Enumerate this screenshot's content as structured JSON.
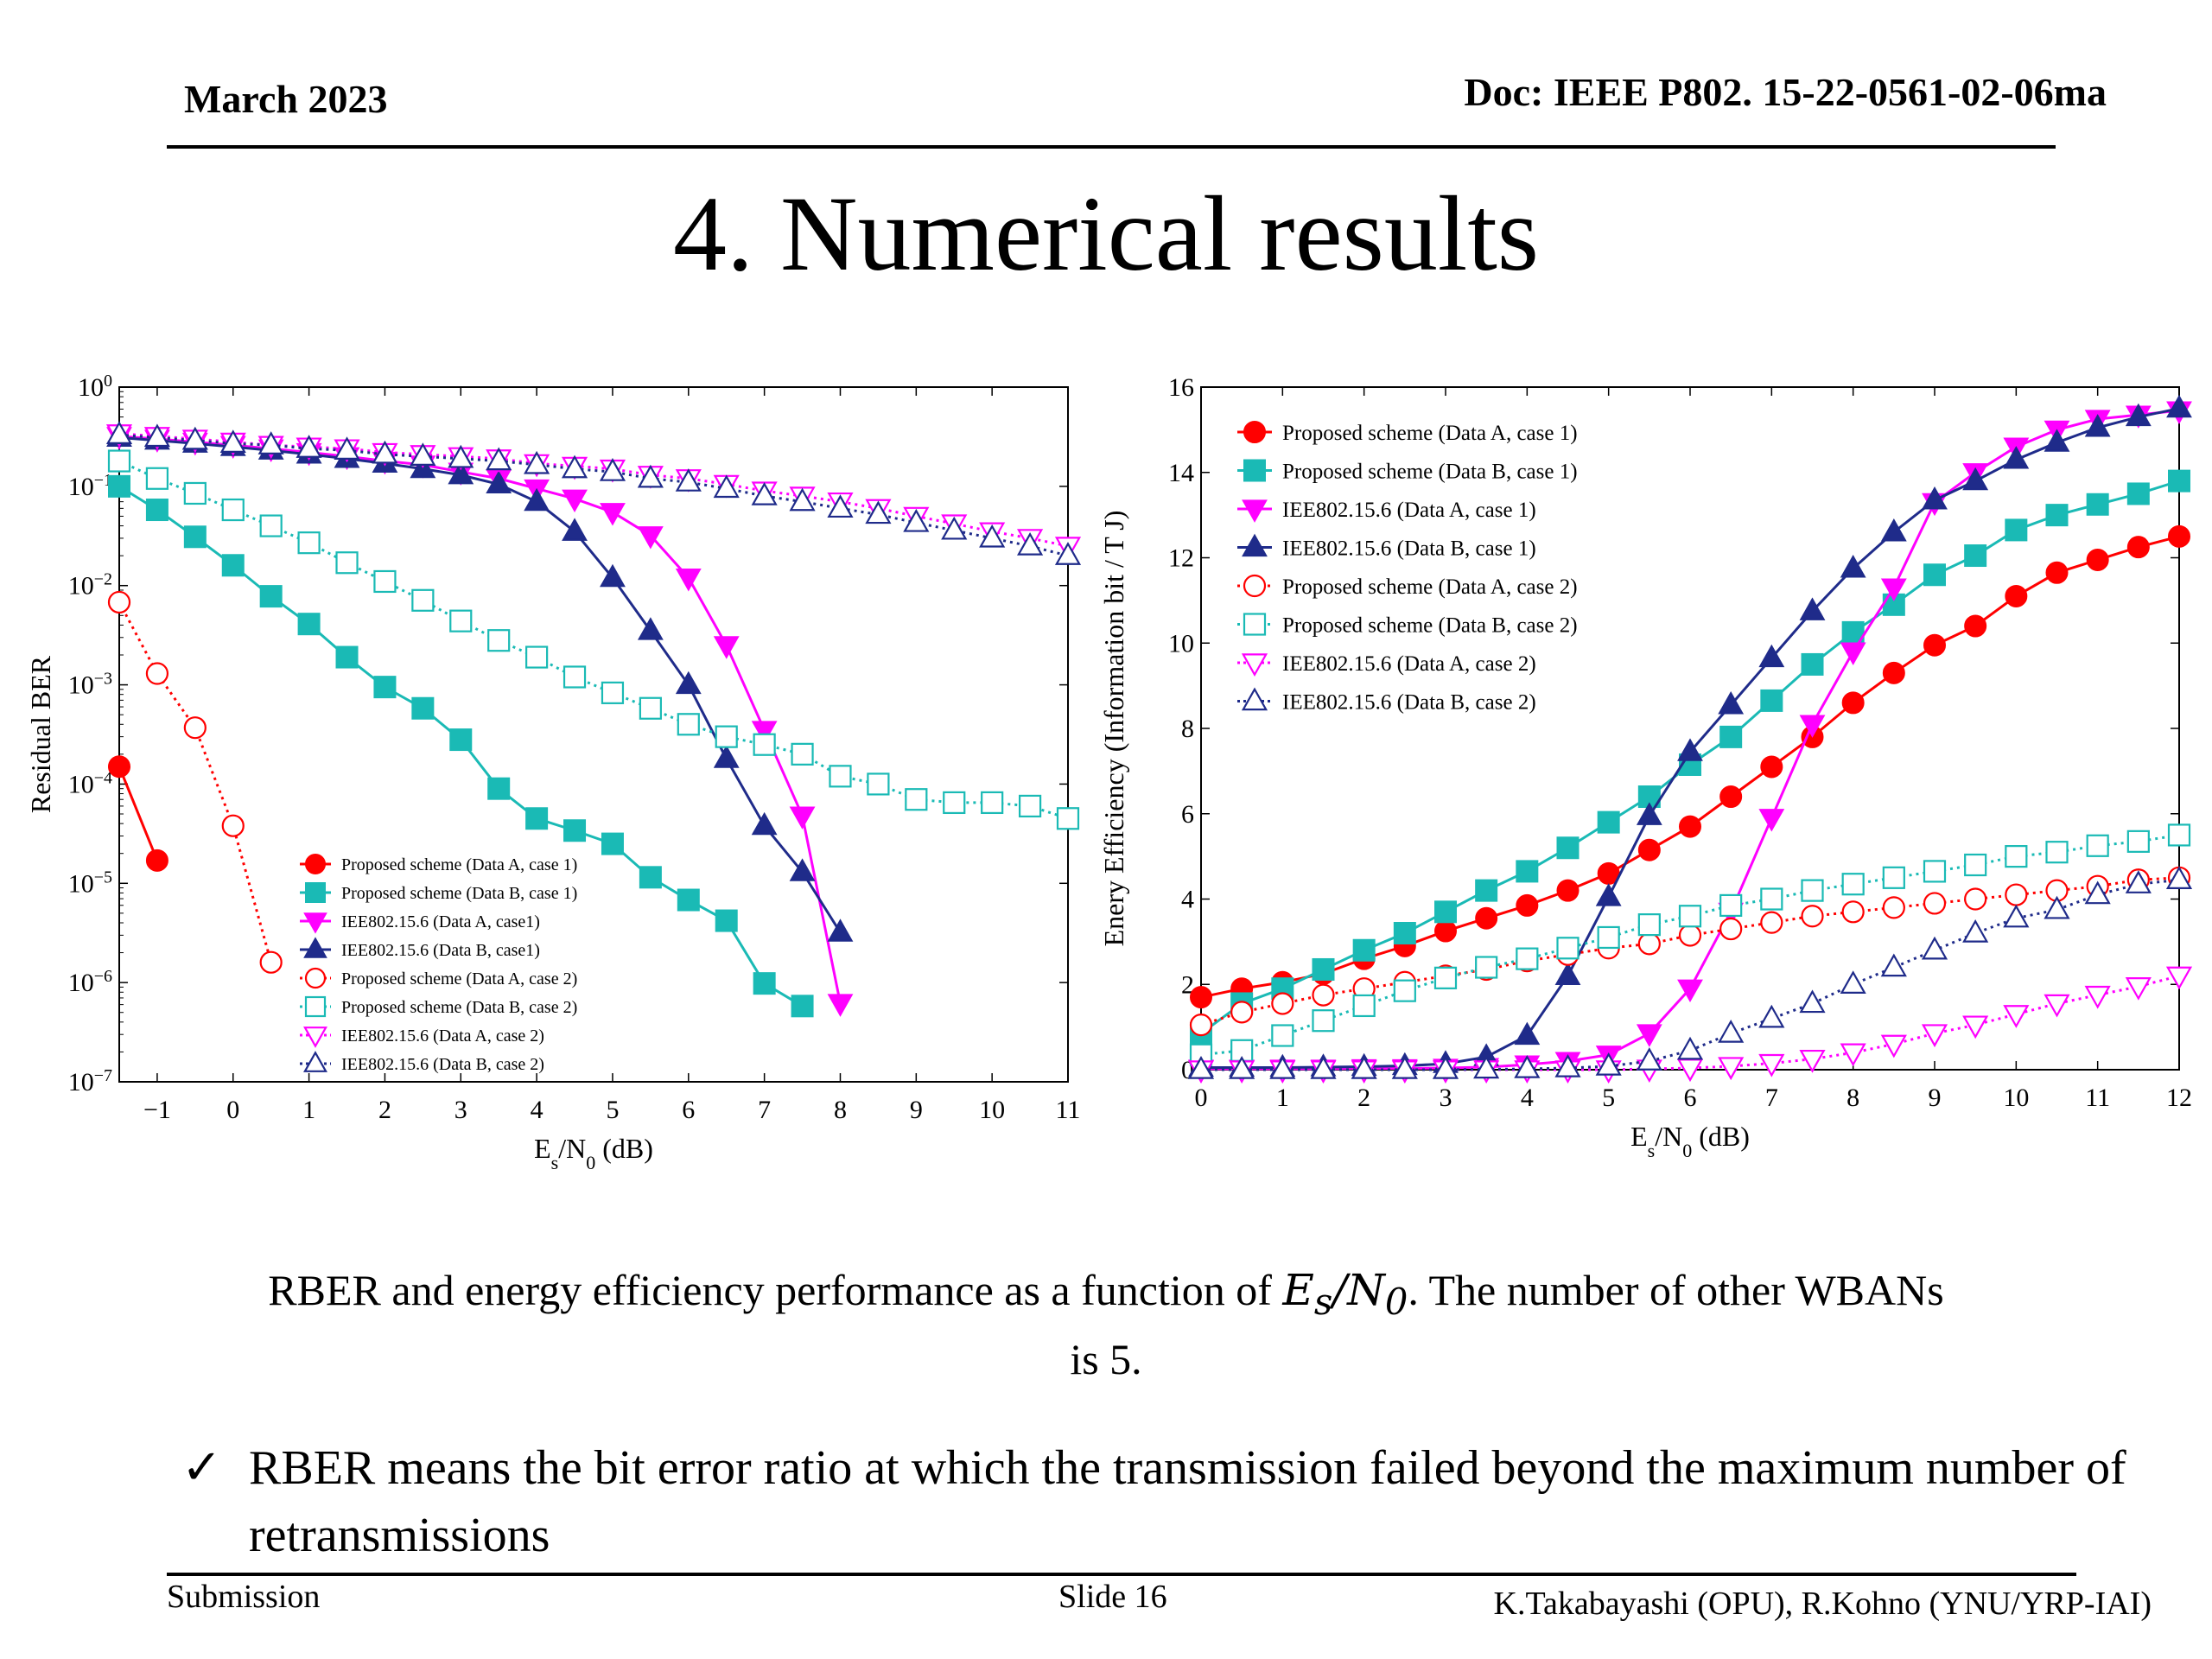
{
  "header": {
    "date": "March 2023",
    "doc": "Doc: IEEE P802. 15-22-0561-02-06ma"
  },
  "title": "4. Numerical results",
  "caption": {
    "before": "RBER and energy efficiency performance as a function of ",
    "math_base": "E",
    "math_sub": "s",
    "math_rest": "/N",
    "math_sub2": "0",
    "after": ". The number of other WBANs is 5."
  },
  "bullet": {
    "check": "✓",
    "text": "RBER means the bit error ratio at which the transmission failed beyond the maximum number of retransmissions"
  },
  "footer": {
    "left": "Submission",
    "center": "Slide 16",
    "right": "K.Takabayashi (OPU), R.Kohno (YNU/YRP-IAI)"
  },
  "colors": {
    "red": "#ff0000",
    "teal": "#1abab5",
    "magenta": "#ff00ff",
    "navy": "#1f2b8a"
  },
  "chart_data": [
    {
      "type": "line",
      "xlabel": "Es/N0 (dB)",
      "ylabel": "Residual BER",
      "xlim": [
        -1.5,
        11
      ],
      "ylim": [
        1e-07,
        1
      ],
      "yscale": "log",
      "xticks": [
        -1,
        0,
        1,
        2,
        3,
        4,
        5,
        6,
        7,
        8,
        9,
        10,
        11
      ],
      "xtick_labels": [
        "−1",
        "0",
        "1",
        "2",
        "3",
        "4",
        "5",
        "6",
        "7",
        "8",
        "9",
        "10",
        "11"
      ],
      "yticks": [
        {
          "base": "10",
          "exp": "0"
        },
        {
          "base": "10",
          "exp": "-1"
        },
        {
          "base": "10",
          "exp": "-2"
        },
        {
          "base": "10",
          "exp": "-3"
        },
        {
          "base": "10",
          "exp": "-4"
        },
        {
          "base": "10",
          "exp": "-5"
        },
        {
          "base": "10",
          "exp": "-6"
        },
        {
          "base": "10",
          "exp": "-7"
        }
      ],
      "legend_position": "bottom-center",
      "series": [
        {
          "name": "Proposed scheme (Data A, case 1)",
          "color": "red",
          "marker": "circle",
          "filled": true,
          "dotted": false,
          "x": [
            -1.5,
            -1
          ],
          "y": [
            0.00015,
            1.7e-05
          ]
        },
        {
          "name": "Proposed scheme (Data B, case 1)",
          "color": "teal",
          "marker": "square",
          "filled": true,
          "dotted": false,
          "x": [
            -1.5,
            -1,
            -0.5,
            0,
            0.5,
            1,
            1.5,
            2,
            2.5,
            3,
            3.5,
            4,
            4.5,
            5,
            5.5,
            6,
            6.5,
            7,
            7.5
          ],
          "y": [
            0.1,
            0.058,
            0.031,
            0.016,
            0.0078,
            0.0041,
            0.0019,
            0.00095,
            0.00058,
            0.00028,
            9e-05,
            4.5e-05,
            3.4e-05,
            2.5e-05,
            1.15e-05,
            6.8e-06,
            4.2e-06,
            9.8e-07,
            5.8e-07
          ]
        },
        {
          "name": "IEE802.15.6 (Data A, case1)",
          "color": "magenta",
          "marker": "tri-down",
          "filled": true,
          "dotted": false,
          "x": [
            -1.5,
            -1,
            -0.5,
            0,
            0.5,
            1,
            1.5,
            2,
            2.5,
            3,
            3.5,
            4,
            4.5,
            5,
            5.5,
            6,
            6.5,
            7,
            7.5,
            8
          ],
          "y": [
            0.32,
            0.3,
            0.28,
            0.26,
            0.24,
            0.22,
            0.2,
            0.18,
            0.165,
            0.14,
            0.12,
            0.095,
            0.075,
            0.055,
            0.032,
            0.012,
            0.0025,
            0.00035,
            4.8e-05,
            6.2e-07
          ]
        },
        {
          "name": "IEE802.15.6 (Data B, case1)",
          "color": "navy",
          "marker": "tri-up",
          "filled": true,
          "dotted": false,
          "x": [
            -1.5,
            -1,
            -0.5,
            0,
            0.5,
            1,
            1.5,
            2,
            2.5,
            3,
            3.5,
            4,
            4.5,
            5,
            5.5,
            6,
            6.5,
            7,
            7.5,
            8
          ],
          "y": [
            0.31,
            0.29,
            0.27,
            0.25,
            0.23,
            0.21,
            0.19,
            0.17,
            0.15,
            0.13,
            0.105,
            0.07,
            0.035,
            0.012,
            0.0035,
            0.001,
            0.00018,
            3.8e-05,
            1.3e-05,
            3.2e-06
          ]
        },
        {
          "name": "Proposed scheme (Data A, case 2)",
          "color": "red",
          "marker": "circle",
          "filled": false,
          "dotted": true,
          "x": [
            -1.5,
            -1,
            -0.5,
            0,
            0.5
          ],
          "y": [
            0.0068,
            0.0013,
            0.00037,
            3.8e-05,
            1.6e-06
          ]
        },
        {
          "name": "Proposed scheme (Data B, case 2)",
          "color": "teal",
          "marker": "square",
          "filled": false,
          "dotted": true,
          "x": [
            -1.5,
            -1,
            -0.5,
            0,
            0.5,
            1,
            1.5,
            2,
            2.5,
            3,
            3.5,
            4,
            4.5,
            5,
            5.5,
            6,
            6.5,
            7,
            7.5,
            8,
            8.5,
            9,
            9.5,
            10,
            10.5,
            11
          ],
          "y": [
            0.18,
            0.12,
            0.085,
            0.058,
            0.04,
            0.027,
            0.017,
            0.011,
            0.0071,
            0.0044,
            0.0028,
            0.0019,
            0.0012,
            0.00083,
            0.00058,
            0.0004,
            0.0003,
            0.00025,
            0.0002,
            0.00012,
            0.0001,
            7e-05,
            6.5e-05,
            6.5e-05,
            6e-05,
            4.5e-05
          ]
        },
        {
          "name": "IEE802.15.6 (Data A, case 2)",
          "color": "magenta",
          "marker": "tri-down",
          "filled": false,
          "dotted": true,
          "x": [
            -1.5,
            -1,
            -0.5,
            0,
            0.5,
            1,
            1.5,
            2,
            2.5,
            3,
            3.5,
            4,
            4.5,
            5,
            5.5,
            6,
            6.5,
            7,
            7.5,
            8,
            8.5,
            9,
            9.5,
            10,
            10.5,
            11
          ],
          "y": [
            0.34,
            0.32,
            0.3,
            0.28,
            0.26,
            0.25,
            0.24,
            0.22,
            0.21,
            0.2,
            0.19,
            0.17,
            0.16,
            0.15,
            0.13,
            0.12,
            0.105,
            0.09,
            0.08,
            0.07,
            0.06,
            0.05,
            0.042,
            0.035,
            0.03,
            0.025
          ]
        },
        {
          "name": "IEE802.15.6 (Data B, case 2)",
          "color": "navy",
          "marker": "tri-up",
          "filled": false,
          "dotted": true,
          "x": [
            -1.5,
            -1,
            -0.5,
            0,
            0.5,
            1,
            1.5,
            2,
            2.5,
            3,
            3.5,
            4,
            4.5,
            5,
            5.5,
            6,
            6.5,
            7,
            7.5,
            8,
            8.5,
            9,
            9.5,
            10,
            10.5,
            11
          ],
          "y": [
            0.33,
            0.31,
            0.29,
            0.27,
            0.26,
            0.24,
            0.23,
            0.21,
            0.2,
            0.19,
            0.18,
            0.165,
            0.15,
            0.14,
            0.12,
            0.11,
            0.095,
            0.08,
            0.07,
            0.06,
            0.052,
            0.043,
            0.036,
            0.03,
            0.025,
            0.02
          ]
        }
      ]
    },
    {
      "type": "line",
      "xlabel": "Es/N0 (dB)",
      "ylabel": "Enery Efficiency (Information bit / T J)",
      "xlim": [
        0,
        12
      ],
      "ylim": [
        0,
        16
      ],
      "xticks": [
        0,
        1,
        2,
        3,
        4,
        5,
        6,
        7,
        8,
        9,
        10,
        11,
        12
      ],
      "yticks": [
        0,
        2,
        4,
        6,
        8,
        10,
        12,
        14,
        16
      ],
      "legend_position": "top-left",
      "series": [
        {
          "name": "Proposed scheme (Data A, case 1)",
          "color": "red",
          "marker": "circle",
          "filled": true,
          "dotted": false,
          "x": [
            0,
            0.5,
            1,
            1.5,
            2,
            2.5,
            3,
            3.5,
            4,
            4.5,
            5,
            5.5,
            6,
            6.5,
            7,
            7.5,
            8,
            8.5,
            9,
            9.5,
            10,
            10.5,
            11,
            11.5,
            12
          ],
          "y": [
            1.7,
            1.9,
            2.05,
            2.25,
            2.6,
            2.9,
            3.25,
            3.55,
            3.85,
            4.2,
            4.6,
            5.15,
            5.7,
            6.4,
            7.1,
            7.8,
            8.6,
            9.3,
            9.95,
            10.4,
            11.1,
            11.65,
            11.95,
            12.25,
            12.5
          ]
        },
        {
          "name": "Proposed scheme (Data B, case 1)",
          "color": "teal",
          "marker": "square",
          "filled": true,
          "dotted": false,
          "x": [
            0,
            0.5,
            1,
            1.5,
            2,
            2.5,
            3,
            3.5,
            4,
            4.5,
            5,
            5.5,
            6,
            6.5,
            7,
            7.5,
            8,
            8.5,
            9,
            9.5,
            10,
            10.5,
            11,
            11.5,
            12
          ],
          "y": [
            0.85,
            1.55,
            1.9,
            2.35,
            2.8,
            3.2,
            3.7,
            4.2,
            4.65,
            5.2,
            5.8,
            6.4,
            7.15,
            7.8,
            8.65,
            9.5,
            10.25,
            10.9,
            11.6,
            12.05,
            12.65,
            13.0,
            13.25,
            13.5,
            13.8
          ]
        },
        {
          "name": "IEE802.15.6 (Data A, case 1)",
          "color": "magenta",
          "marker": "tri-down",
          "filled": true,
          "dotted": false,
          "x": [
            0,
            0.5,
            1,
            1.5,
            2,
            2.5,
            3,
            3.5,
            4,
            4.5,
            5,
            5.5,
            6,
            6.5,
            7,
            7.5,
            8,
            8.5,
            9,
            9.5,
            10,
            10.5,
            11,
            11.5,
            12
          ],
          "y": [
            0.02,
            0.02,
            0.02,
            0.02,
            0.03,
            0.03,
            0.04,
            0.06,
            0.12,
            0.2,
            0.35,
            0.85,
            1.9,
            3.7,
            5.9,
            8.1,
            9.8,
            11.3,
            13.3,
            14.0,
            14.6,
            15.0,
            15.25,
            15.35,
            15.45
          ]
        },
        {
          "name": "IEE802.15.6 (Data B, case 1)",
          "color": "navy",
          "marker": "tri-up",
          "filled": true,
          "dotted": false,
          "x": [
            0,
            0.5,
            1,
            1.5,
            2,
            2.5,
            3,
            3.5,
            4,
            4.5,
            5,
            5.5,
            6,
            6.5,
            7,
            7.5,
            8,
            8.5,
            9,
            9.5,
            10,
            10.5,
            11,
            11.5,
            12
          ],
          "y": [
            0.05,
            0.05,
            0.05,
            0.06,
            0.07,
            0.09,
            0.14,
            0.3,
            0.8,
            2.2,
            4.05,
            5.95,
            7.45,
            8.55,
            9.65,
            10.75,
            11.75,
            12.6,
            13.35,
            13.8,
            14.3,
            14.7,
            15.05,
            15.3,
            15.5
          ]
        },
        {
          "name": "Proposed scheme (Data A, case 2)",
          "color": "red",
          "marker": "circle",
          "filled": false,
          "dotted": true,
          "x": [
            0,
            0.5,
            1,
            1.5,
            2,
            2.5,
            3,
            3.5,
            4,
            4.5,
            5,
            5.5,
            6,
            6.5,
            7,
            7.5,
            8,
            8.5,
            9,
            9.5,
            10,
            10.5,
            11,
            11.5,
            12
          ],
          "y": [
            1.05,
            1.35,
            1.55,
            1.75,
            1.9,
            2.05,
            2.2,
            2.35,
            2.55,
            2.7,
            2.85,
            2.95,
            3.15,
            3.3,
            3.45,
            3.6,
            3.7,
            3.8,
            3.9,
            4.0,
            4.1,
            4.2,
            4.3,
            4.45,
            4.5
          ]
        },
        {
          "name": "Proposed scheme (Data B, case 2)",
          "color": "teal",
          "marker": "square",
          "filled": false,
          "dotted": true,
          "x": [
            0,
            0.5,
            1,
            1.5,
            2,
            2.5,
            3,
            3.5,
            4,
            4.5,
            5,
            5.5,
            6,
            6.5,
            7,
            7.5,
            8,
            8.5,
            9,
            9.5,
            10,
            10.5,
            11,
            11.5,
            12
          ],
          "y": [
            0.35,
            0.45,
            0.8,
            1.15,
            1.5,
            1.85,
            2.15,
            2.4,
            2.6,
            2.85,
            3.1,
            3.4,
            3.6,
            3.85,
            4.0,
            4.2,
            4.35,
            4.5,
            4.65,
            4.8,
            5.0,
            5.1,
            5.25,
            5.35,
            5.5
          ]
        },
        {
          "name": "IEE802.15.6 (Data A, case 2)",
          "color": "magenta",
          "marker": "tri-down",
          "filled": false,
          "dotted": true,
          "x": [
            0,
            0.5,
            1,
            1.5,
            2,
            2.5,
            3,
            3.5,
            4,
            4.5,
            5,
            5.5,
            6,
            6.5,
            7,
            7.5,
            8,
            8.5,
            9,
            9.5,
            10,
            10.5,
            11,
            11.5,
            12
          ],
          "y": [
            0.0,
            0.0,
            0.0,
            0.0,
            0.0,
            0.0,
            0.0,
            0.0,
            0.0,
            0.0,
            0.0,
            0.02,
            0.04,
            0.08,
            0.15,
            0.25,
            0.4,
            0.6,
            0.85,
            1.05,
            1.3,
            1.55,
            1.75,
            1.95,
            2.2
          ]
        },
        {
          "name": "IEE802.15.6 (Data B, case 2)",
          "color": "navy",
          "marker": "tri-up",
          "filled": false,
          "dotted": true,
          "x": [
            0,
            0.5,
            1,
            1.5,
            2,
            2.5,
            3,
            3.5,
            4,
            4.5,
            5,
            5.5,
            6,
            6.5,
            7,
            7.5,
            8,
            8.5,
            9,
            9.5,
            10,
            10.5,
            11,
            11.5,
            12
          ],
          "y": [
            0.0,
            0.0,
            0.0,
            0.0,
            0.0,
            0.0,
            0.0,
            0.01,
            0.02,
            0.04,
            0.08,
            0.2,
            0.45,
            0.85,
            1.2,
            1.55,
            2.0,
            2.4,
            2.8,
            3.2,
            3.55,
            3.75,
            4.1,
            4.35,
            4.45
          ]
        }
      ]
    }
  ]
}
